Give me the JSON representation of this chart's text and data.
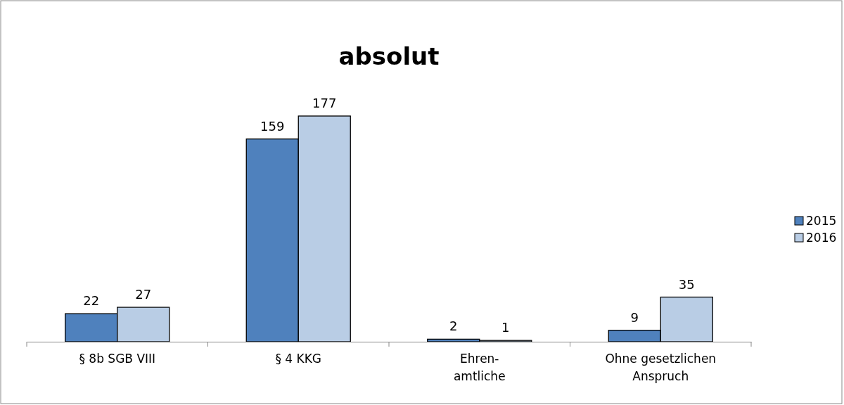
{
  "chart_data": {
    "type": "bar",
    "title": "absolut",
    "categories": [
      "§ 8b SGB VIII",
      "§ 4 KKG",
      "Ehren-\namtliche",
      "Ohne gesetzlichen\nAnspruch"
    ],
    "series": [
      {
        "name": "2015",
        "color": "#4f81bd",
        "values": [
          22,
          159,
          2,
          9
        ]
      },
      {
        "name": "2016",
        "color": "#b9cde5",
        "values": [
          27,
          177,
          1,
          35
        ]
      }
    ],
    "data_labels": true,
    "legend": "right",
    "grid": false
  }
}
